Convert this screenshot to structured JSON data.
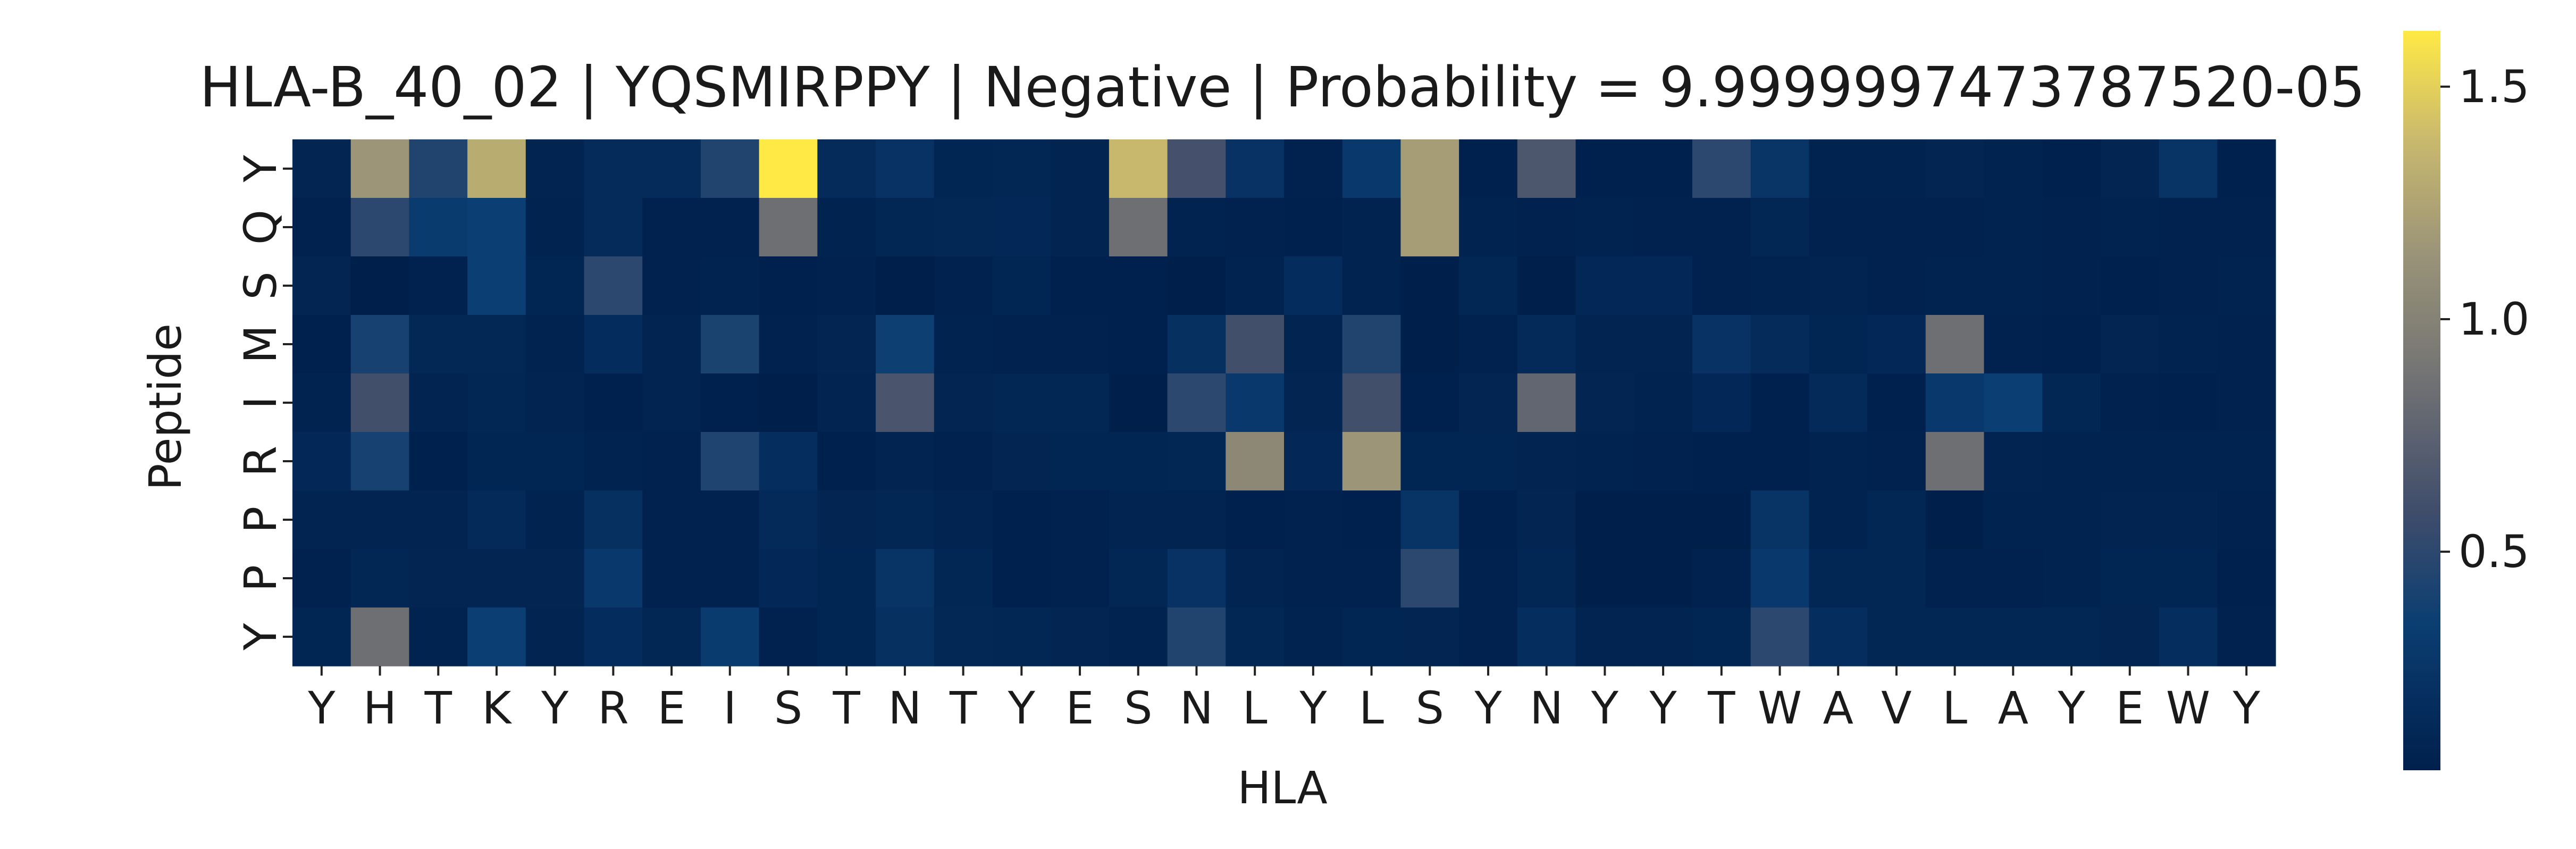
{
  "chart_data": {
    "type": "heatmap",
    "title": "HLA-B_40_02 | YQSMIRPPY | Negative | Probability = 9.9999997473787520-05",
    "xlabel": "HLA",
    "ylabel": "Peptide",
    "x_categories": [
      "Y",
      "H",
      "T",
      "K",
      "Y",
      "R",
      "E",
      "I",
      "S",
      "T",
      "N",
      "T",
      "Y",
      "E",
      "S",
      "N",
      "L",
      "Y",
      "L",
      "S",
      "Y",
      "N",
      "Y",
      "Y",
      "T",
      "W",
      "A",
      "V",
      "L",
      "A",
      "Y",
      "E",
      "W",
      "Y"
    ],
    "y_categories": [
      "Y",
      "Q",
      "S",
      "M",
      "I",
      "R",
      "P",
      "P",
      "Y"
    ],
    "colormap": "cividis",
    "color_range": [
      0.03,
      1.62
    ],
    "colorbar_ticks": [
      {
        "value": 0.5,
        "label": "0.5"
      },
      {
        "value": 1.0,
        "label": "1.0"
      },
      {
        "value": 1.5,
        "label": "1.5"
      }
    ],
    "values": [
      [
        0.08,
        1.15,
        0.45,
        1.3,
        0.07,
        0.15,
        0.15,
        0.45,
        1.62,
        0.15,
        0.22,
        0.09,
        0.1,
        0.07,
        1.38,
        0.62,
        0.22,
        0.05,
        0.3,
        1.2,
        0.04,
        0.66,
        0.04,
        0.04,
        0.5,
        0.25,
        0.06,
        0.06,
        0.08,
        0.06,
        0.04,
        0.08,
        0.24,
        0.04
      ],
      [
        0.05,
        0.5,
        0.32,
        0.35,
        0.06,
        0.15,
        0.05,
        0.05,
        0.85,
        0.06,
        0.1,
        0.11,
        0.12,
        0.07,
        0.85,
        0.06,
        0.05,
        0.04,
        0.06,
        1.2,
        0.06,
        0.05,
        0.06,
        0.05,
        0.05,
        0.1,
        0.05,
        0.05,
        0.05,
        0.06,
        0.05,
        0.06,
        0.05,
        0.05
      ],
      [
        0.08,
        0.02,
        0.05,
        0.35,
        0.09,
        0.5,
        0.05,
        0.06,
        0.04,
        0.05,
        0.03,
        0.05,
        0.09,
        0.04,
        0.04,
        0.03,
        0.06,
        0.16,
        0.06,
        0.02,
        0.1,
        0.02,
        0.12,
        0.12,
        0.05,
        0.06,
        0.07,
        0.05,
        0.06,
        0.06,
        0.05,
        0.04,
        0.05,
        0.06
      ],
      [
        0.04,
        0.4,
        0.11,
        0.11,
        0.06,
        0.16,
        0.07,
        0.42,
        0.05,
        0.08,
        0.36,
        0.06,
        0.05,
        0.05,
        0.04,
        0.2,
        0.6,
        0.07,
        0.45,
        0.03,
        0.05,
        0.14,
        0.07,
        0.07,
        0.22,
        0.15,
        0.09,
        0.12,
        0.85,
        0.05,
        0.04,
        0.08,
        0.06,
        0.05
      ],
      [
        0.06,
        0.6,
        0.07,
        0.1,
        0.07,
        0.04,
        0.07,
        0.04,
        0.03,
        0.07,
        0.65,
        0.08,
        0.1,
        0.1,
        0.03,
        0.5,
        0.3,
        0.08,
        0.6,
        0.04,
        0.08,
        0.78,
        0.08,
        0.06,
        0.12,
        0.04,
        0.14,
        0.04,
        0.3,
        0.35,
        0.1,
        0.05,
        0.04,
        0.05
      ],
      [
        0.12,
        0.4,
        0.04,
        0.09,
        0.09,
        0.06,
        0.05,
        0.44,
        0.18,
        0.04,
        0.07,
        0.05,
        0.08,
        0.09,
        0.09,
        0.1,
        1.05,
        0.12,
        1.15,
        0.09,
        0.09,
        0.07,
        0.06,
        0.05,
        0.04,
        0.04,
        0.06,
        0.05,
        0.85,
        0.07,
        0.06,
        0.06,
        0.06,
        0.06
      ],
      [
        0.07,
        0.07,
        0.07,
        0.14,
        0.06,
        0.2,
        0.05,
        0.05,
        0.14,
        0.08,
        0.1,
        0.07,
        0.04,
        0.05,
        0.07,
        0.07,
        0.04,
        0.05,
        0.04,
        0.24,
        0.04,
        0.08,
        0.03,
        0.03,
        0.03,
        0.24,
        0.06,
        0.1,
        0.02,
        0.06,
        0.06,
        0.07,
        0.07,
        0.05
      ],
      [
        0.05,
        0.1,
        0.08,
        0.08,
        0.08,
        0.3,
        0.05,
        0.05,
        0.12,
        0.09,
        0.24,
        0.1,
        0.04,
        0.05,
        0.1,
        0.22,
        0.07,
        0.05,
        0.05,
        0.5,
        0.05,
        0.1,
        0.03,
        0.03,
        0.05,
        0.3,
        0.1,
        0.1,
        0.05,
        0.05,
        0.06,
        0.09,
        0.09,
        0.04
      ],
      [
        0.09,
        0.85,
        0.06,
        0.35,
        0.07,
        0.16,
        0.1,
        0.32,
        0.05,
        0.09,
        0.2,
        0.11,
        0.1,
        0.08,
        0.06,
        0.45,
        0.1,
        0.06,
        0.09,
        0.08,
        0.05,
        0.18,
        0.07,
        0.07,
        0.09,
        0.5,
        0.18,
        0.1,
        0.1,
        0.1,
        0.1,
        0.08,
        0.18,
        0.05
      ]
    ]
  }
}
